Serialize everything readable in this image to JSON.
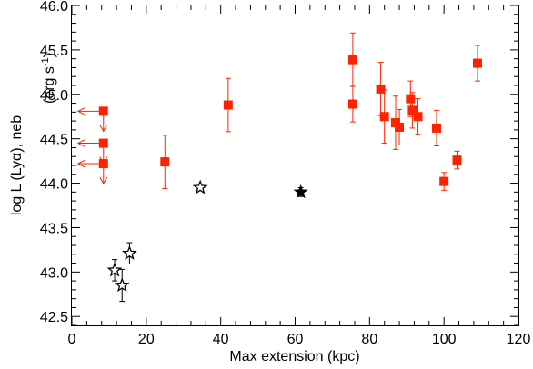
{
  "chart_data": {
    "type": "scatter",
    "title": "",
    "xlabel": "Max extension (kpc)",
    "ylabel": "log L (Lyα), neb",
    "ylabel_unit_prefix": "(erg  s",
    "ylabel_unit_sup": "-1",
    "ylabel_unit_suffix": ")",
    "xlim": [
      0,
      120
    ],
    "ylim": [
      42.4,
      46.0
    ],
    "xticks": [
      0,
      20,
      40,
      60,
      80,
      100,
      120
    ],
    "yticks": [
      42.5,
      43.0,
      43.5,
      44.0,
      44.5,
      45.0,
      45.5,
      46.0
    ],
    "xtick_labels": [
      "0",
      "20",
      "40",
      "60",
      "80",
      "100",
      "120"
    ],
    "ytick_labels": [
      "42.5",
      "43.0",
      "43.5",
      "44.0",
      "44.5",
      "45.0",
      "45.5",
      "46.0"
    ],
    "colors": {
      "red": "#ff2200",
      "black": "#000000"
    },
    "series": [
      {
        "marker": "square",
        "color": "#ff2200",
        "points": [
          {
            "x": 25.0,
            "y": 44.24,
            "err": 0.3
          },
          {
            "x": 42.0,
            "y": 44.88,
            "err": 0.3
          },
          {
            "x": 75.5,
            "y": 45.39,
            "err": 0.3
          },
          {
            "x": 75.5,
            "y": 44.89,
            "err": 0.2
          },
          {
            "x": 83.0,
            "y": 45.06,
            "err": 0.3
          },
          {
            "x": 84.0,
            "y": 44.75,
            "err": 0.3
          },
          {
            "x": 87.0,
            "y": 44.68,
            "err": 0.3
          },
          {
            "x": 88.0,
            "y": 44.63,
            "err": 0.2
          },
          {
            "x": 91.0,
            "y": 44.95,
            "err": 0.2
          },
          {
            "x": 91.5,
            "y": 44.82,
            "err": 0.2
          },
          {
            "x": 93.0,
            "y": 44.75,
            "err": 0.2
          },
          {
            "x": 98.0,
            "y": 44.62,
            "err": 0.2
          },
          {
            "x": 100.0,
            "y": 44.02,
            "err": 0.1
          },
          {
            "x": 103.5,
            "y": 44.26,
            "err": 0.1
          },
          {
            "x": 109.0,
            "y": 45.35,
            "err": 0.2
          }
        ]
      },
      {
        "marker": "square-upper-limit",
        "color": "#ff2200",
        "points": [
          {
            "x": 8.5,
            "y": 44.81
          },
          {
            "x": 8.5,
            "y": 44.45
          },
          {
            "x": 8.5,
            "y": 44.22
          }
        ]
      },
      {
        "marker": "open-star",
        "color": "#000000",
        "points": [
          {
            "x": 11.5,
            "y": 43.02,
            "err": 0.12
          },
          {
            "x": 13.5,
            "y": 42.85,
            "err": 0.18
          },
          {
            "x": 15.5,
            "y": 43.21,
            "err": 0.12
          },
          {
            "x": 34.5,
            "y": 43.95,
            "err": 0.0
          }
        ]
      },
      {
        "marker": "filled-star",
        "color": "#000000",
        "points": [
          {
            "x": 61.5,
            "y": 43.9,
            "err": 0.05
          }
        ]
      }
    ]
  }
}
